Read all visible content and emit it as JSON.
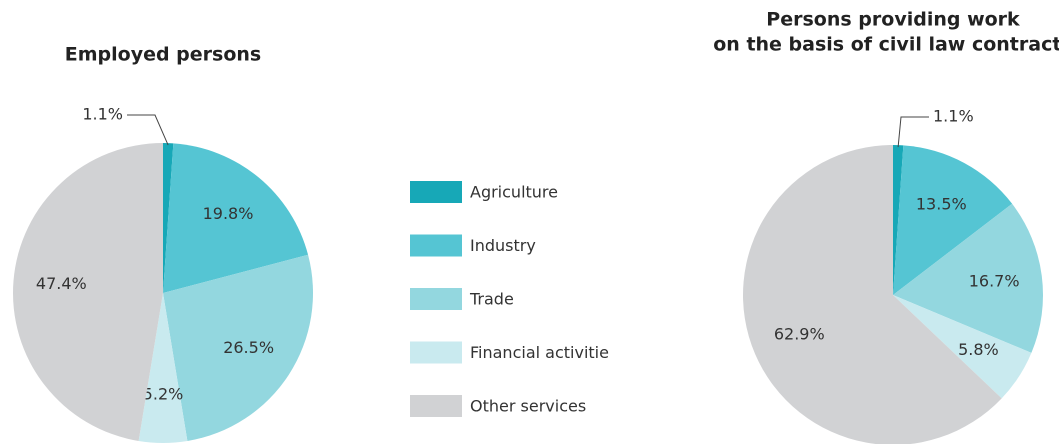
{
  "chart_data": [
    {
      "type": "pie",
      "title": [
        "Employed persons"
      ],
      "categories": [
        "Agriculture",
        "Industry",
        "Trade",
        "Financial activitie",
        "Other services"
      ],
      "colors": [
        "#17a8b7",
        "#55c5d3",
        "#93d7df",
        "#c9eaef",
        "#d1d2d4"
      ],
      "values": [
        1.1,
        19.8,
        26.5,
        5.2,
        47.4
      ],
      "value_labels": [
        "1.1%",
        "19.8%",
        "26.5%",
        "5.2%",
        "47.4%"
      ]
    },
    {
      "type": "pie",
      "title": [
        "Persons providing work",
        "on the basis of civil law contracts"
      ],
      "categories": [
        "Agriculture",
        "Industry",
        "Trade",
        "Financial activitie",
        "Other services"
      ],
      "colors": [
        "#17a8b7",
        "#55c5d3",
        "#93d7df",
        "#c9eaef",
        "#d1d2d4"
      ],
      "values": [
        1.1,
        13.5,
        16.7,
        5.8,
        62.9
      ],
      "value_labels": [
        "1.1%",
        "13.5%",
        "16.7%",
        "5.8%",
        "62.9%"
      ]
    }
  ]
}
